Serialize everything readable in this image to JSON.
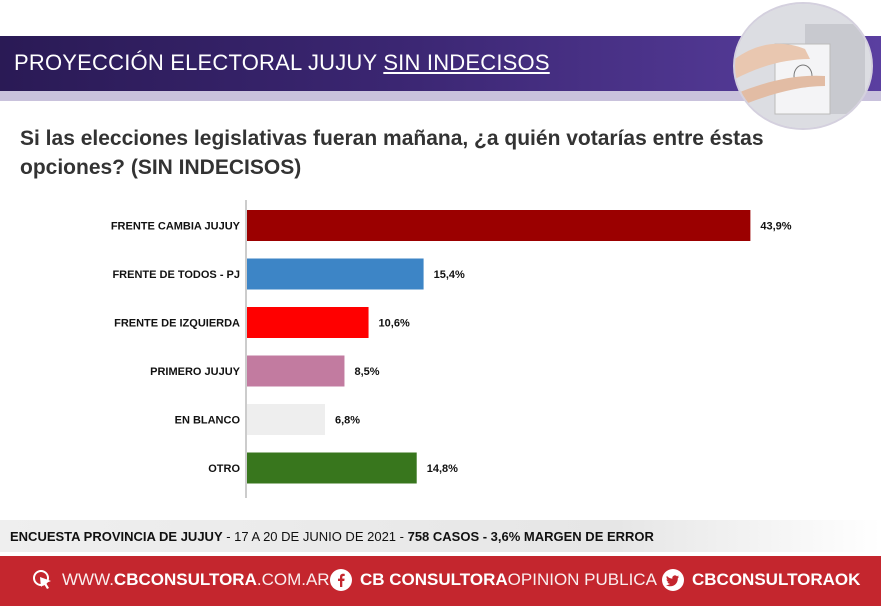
{
  "header": {
    "title_main": "PROYECCIÓN ELECTORAL JUJUY ",
    "title_underlined": "SIN INDECISOS"
  },
  "question": "Si las elecciones legislativas fueran mañana, ¿a quién votarías entre éstas opciones? (SIN INDECISOS)",
  "chart_data": {
    "type": "bar",
    "orientation": "horizontal",
    "categories": [
      "FRENTE CAMBIA JUJUY",
      "FRENTE DE TODOS - PJ",
      "FRENTE DE IZQUIERDA",
      "PRIMERO JUJUY",
      "EN BLANCO",
      "OTRO"
    ],
    "values": [
      43.9,
      15.4,
      10.6,
      8.5,
      6.8,
      14.8
    ],
    "value_labels": [
      "43,9%",
      "15,4%",
      "10,6%",
      "8,5%",
      "6,8%",
      "14,8%"
    ],
    "colors": [
      "#9b0000",
      "#3d85c6",
      "#ff0000",
      "#c27ba0",
      "#eeeeee",
      "#38761d"
    ],
    "xlim": [
      0,
      45
    ],
    "grid": false
  },
  "footer": {
    "survey_label": "ENCUESTA PROVINCIA DE JUJUY",
    "dates": " - 17 A 20 DE JUNIO DE 2021 - ",
    "cases": "758 CASOS - 3,6% MARGEN DE ERROR"
  },
  "social": {
    "web_prefix": "WWW.",
    "web_bold": "CBCONSULTORA",
    "web_suffix": ".COM.AR",
    "facebook_bold": "CB CONSULTORA",
    "facebook_light": " OPINION PUBLICA",
    "twitter": "CBCONSULTORAOK",
    "icons": [
      "cursor-click-icon",
      "facebook-icon",
      "twitter-icon"
    ]
  }
}
